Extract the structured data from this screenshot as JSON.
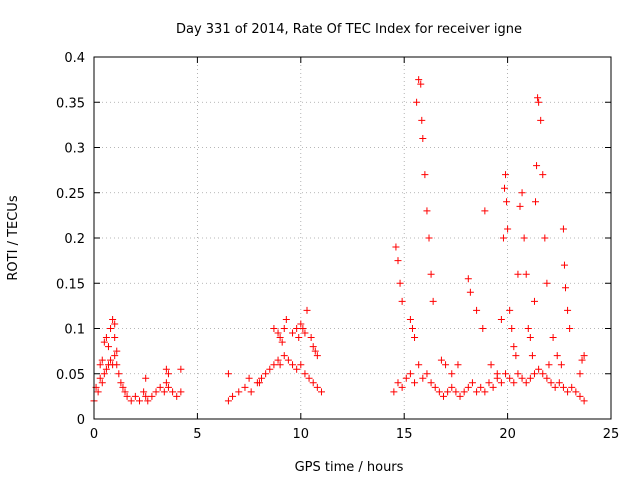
{
  "chart_data": {
    "type": "scatter",
    "title": "Day 331 of 2014, Rate Of TEC Index for receiver igne",
    "xlabel": "GPS time / hours",
    "ylabel": "ROTI / TECUs",
    "xlim": [
      0,
      25
    ],
    "ylim": [
      0,
      0.4
    ],
    "grid": true,
    "marker": "+",
    "series_color": "#ff0000",
    "x_ticks": [
      0,
      5,
      10,
      15,
      20,
      25
    ],
    "x_tick_labels": [
      "0",
      "5",
      "10",
      "15",
      "20",
      "25"
    ],
    "y_ticks": [
      0,
      0.05,
      0.1,
      0.15,
      0.2,
      0.25,
      0.3,
      0.35,
      0.4
    ],
    "y_tick_labels": [
      "0",
      "0.05",
      "0.1",
      "0.15",
      "0.2",
      "0.25",
      "0.3",
      "0.35",
      "0.4"
    ],
    "series": [
      {
        "name": "ROTI",
        "x": [
          0.0,
          0.1,
          0.2,
          0.3,
          0.4,
          0.5,
          0.6,
          0.7,
          0.8,
          0.9,
          1.0,
          1.1,
          1.2,
          1.3,
          1.4,
          1.5,
          1.6,
          1.8,
          2.0,
          2.2,
          2.4,
          2.5,
          2.6,
          2.8,
          3.0,
          3.2,
          3.4,
          3.5,
          3.6,
          3.8,
          4.0,
          4.2,
          0.5,
          0.6,
          0.7,
          0.8,
          0.9,
          1.0,
          1.0,
          1.1,
          0.3,
          0.4,
          2.5,
          3.5,
          3.6,
          4.2,
          6.5,
          6.7,
          7.0,
          7.3,
          7.6,
          7.9,
          8.1,
          8.3,
          8.5,
          8.7,
          8.9,
          9.0,
          9.2,
          9.4,
          9.6,
          9.8,
          10.0,
          10.2,
          10.4,
          10.6,
          10.8,
          11.0,
          8.7,
          8.9,
          9.0,
          9.1,
          9.2,
          9.3,
          9.6,
          9.8,
          9.9,
          10.0,
          10.1,
          10.2,
          10.3,
          10.5,
          10.6,
          10.7,
          10.8,
          6.5,
          7.5,
          8.0,
          14.5,
          14.7,
          14.9,
          15.1,
          15.3,
          15.5,
          15.7,
          15.9,
          16.1,
          16.3,
          16.5,
          16.7,
          16.9,
          17.1,
          17.3,
          17.5,
          17.7,
          17.9,
          18.1,
          18.3,
          18.5,
          18.7,
          18.9,
          19.1,
          19.3,
          19.5,
          19.7,
          19.9,
          20.1,
          20.3,
          20.5,
          20.7,
          20.9,
          21.1,
          21.3,
          21.5,
          21.7,
          21.9,
          22.1,
          22.3,
          22.5,
          22.7,
          22.9,
          23.1,
          23.3,
          23.5,
          23.7,
          14.6,
          14.7,
          14.8,
          14.9,
          15.3,
          15.4,
          15.5,
          15.6,
          15.7,
          15.8,
          15.85,
          15.9,
          16.0,
          16.1,
          16.2,
          16.3,
          16.4,
          16.8,
          17.0,
          17.3,
          17.6,
          18.1,
          18.2,
          18.5,
          18.8,
          18.9,
          19.2,
          19.5,
          19.7,
          19.8,
          19.85,
          19.9,
          19.95,
          20.0,
          20.1,
          20.2,
          20.3,
          20.4,
          20.5,
          20.6,
          20.7,
          20.8,
          20.9,
          21.0,
          21.1,
          21.2,
          21.3,
          21.35,
          21.4,
          21.45,
          21.5,
          21.6,
          21.7,
          21.8,
          21.9,
          22.0,
          22.2,
          22.4,
          22.6,
          22.7,
          22.75,
          22.8,
          22.9,
          23.0,
          23.5,
          23.6,
          23.7
        ],
        "y": [
          0.02,
          0.035,
          0.03,
          0.045,
          0.04,
          0.05,
          0.055,
          0.06,
          0.065,
          0.06,
          0.07,
          0.06,
          0.05,
          0.04,
          0.035,
          0.03,
          0.025,
          0.02,
          0.025,
          0.02,
          0.03,
          0.025,
          0.02,
          0.025,
          0.03,
          0.035,
          0.03,
          0.04,
          0.035,
          0.03,
          0.025,
          0.03,
          0.085,
          0.09,
          0.08,
          0.1,
          0.11,
          0.105,
          0.09,
          0.075,
          0.06,
          0.065,
          0.045,
          0.055,
          0.05,
          0.055,
          0.02,
          0.025,
          0.03,
          0.035,
          0.03,
          0.04,
          0.045,
          0.05,
          0.055,
          0.06,
          0.065,
          0.06,
          0.07,
          0.065,
          0.06,
          0.055,
          0.06,
          0.05,
          0.045,
          0.04,
          0.035,
          0.03,
          0.1,
          0.095,
          0.09,
          0.085,
          0.1,
          0.11,
          0.095,
          0.1,
          0.09,
          0.105,
          0.1,
          0.095,
          0.12,
          0.09,
          0.08,
          0.075,
          0.07,
          0.05,
          0.045,
          0.04,
          0.03,
          0.04,
          0.035,
          0.045,
          0.05,
          0.04,
          0.06,
          0.045,
          0.05,
          0.04,
          0.035,
          0.03,
          0.025,
          0.03,
          0.035,
          0.03,
          0.025,
          0.03,
          0.035,
          0.04,
          0.03,
          0.035,
          0.03,
          0.04,
          0.035,
          0.045,
          0.04,
          0.05,
          0.045,
          0.04,
          0.05,
          0.045,
          0.04,
          0.045,
          0.05,
          0.055,
          0.05,
          0.045,
          0.04,
          0.035,
          0.04,
          0.035,
          0.03,
          0.035,
          0.03,
          0.025,
          0.02,
          0.19,
          0.175,
          0.15,
          0.13,
          0.11,
          0.1,
          0.09,
          0.35,
          0.375,
          0.37,
          0.33,
          0.31,
          0.27,
          0.23,
          0.2,
          0.16,
          0.13,
          0.065,
          0.06,
          0.05,
          0.06,
          0.155,
          0.14,
          0.12,
          0.1,
          0.23,
          0.06,
          0.05,
          0.11,
          0.2,
          0.255,
          0.27,
          0.24,
          0.21,
          0.12,
          0.1,
          0.08,
          0.07,
          0.16,
          0.235,
          0.25,
          0.2,
          0.16,
          0.1,
          0.09,
          0.07,
          0.13,
          0.24,
          0.28,
          0.355,
          0.35,
          0.33,
          0.27,
          0.2,
          0.15,
          0.06,
          0.09,
          0.07,
          0.06,
          0.21,
          0.17,
          0.145,
          0.12,
          0.1,
          0.05,
          0.065,
          0.07
        ]
      }
    ]
  }
}
